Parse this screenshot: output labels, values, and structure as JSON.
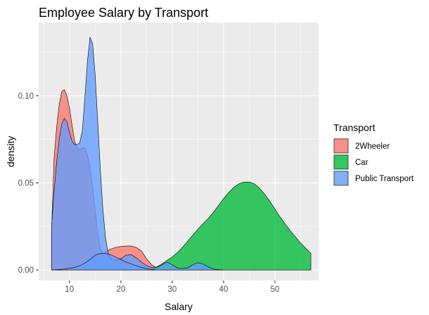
{
  "chart_data": {
    "type": "area",
    "title": "Employee Salary by Transport",
    "xlabel": "Salary",
    "ylabel": "density",
    "xlim": [
      4,
      58.5
    ],
    "ylim": [
      -0.006,
      0.142
    ],
    "xticks": [
      10,
      20,
      30,
      40,
      50
    ],
    "xtick_labels": [
      "10",
      "20",
      "30",
      "40",
      "50"
    ],
    "yticks": [
      0,
      0.05,
      0.1
    ],
    "ytick_labels": [
      "0.00",
      "0.05",
      "0.10"
    ],
    "grid": true,
    "legend": {
      "title": "Transport",
      "placement": "right"
    },
    "series": [
      {
        "name": "2Wheeler",
        "color": "#F8766D",
        "points": [
          [
            6.5,
            0.022
          ],
          [
            7,
            0.064
          ],
          [
            7.5,
            0.082
          ],
          [
            8,
            0.095
          ],
          [
            8.5,
            0.1025
          ],
          [
            9,
            0.1035
          ],
          [
            9.5,
            0.1
          ],
          [
            10,
            0.093
          ],
          [
            10.5,
            0.083
          ],
          [
            11,
            0.074
          ],
          [
            11.5,
            0.07
          ],
          [
            12,
            0.069
          ],
          [
            12.5,
            0.07
          ],
          [
            13,
            0.07
          ],
          [
            13.5,
            0.066
          ],
          [
            14,
            0.058
          ],
          [
            14.5,
            0.047
          ],
          [
            15,
            0.034
          ],
          [
            15.5,
            0.021
          ],
          [
            16,
            0.012
          ],
          [
            16.5,
            0.0095
          ],
          [
            17,
            0.0105
          ],
          [
            18,
            0.012
          ],
          [
            19,
            0.013
          ],
          [
            20,
            0.0135
          ],
          [
            21,
            0.0138
          ],
          [
            22,
            0.0138
          ],
          [
            23,
            0.013
          ],
          [
            24,
            0.011
          ],
          [
            25,
            0.0065
          ],
          [
            26,
            0.003
          ],
          [
            27,
            0.0012
          ],
          [
            28,
            0.0005
          ],
          [
            29,
            0.0002
          ],
          [
            30,
            0.0
          ]
        ]
      },
      {
        "name": "Car",
        "color": "#00BA38",
        "points": [
          [
            25,
            0.0
          ],
          [
            26,
            0.0006
          ],
          [
            27,
            0.0018
          ],
          [
            28,
            0.0035
          ],
          [
            29,
            0.0055
          ],
          [
            30,
            0.0075
          ],
          [
            31,
            0.01
          ],
          [
            32,
            0.013
          ],
          [
            33,
            0.0165
          ],
          [
            34,
            0.02
          ],
          [
            35,
            0.0235
          ],
          [
            36,
            0.0265
          ],
          [
            37,
            0.0295
          ],
          [
            38,
            0.033
          ],
          [
            39,
            0.037
          ],
          [
            40,
            0.041
          ],
          [
            41,
            0.0445
          ],
          [
            42,
            0.0475
          ],
          [
            43,
            0.0495
          ],
          [
            44,
            0.0505
          ],
          [
            45,
            0.0505
          ],
          [
            46,
            0.0495
          ],
          [
            47,
            0.047
          ],
          [
            48,
            0.0435
          ],
          [
            49,
            0.0395
          ],
          [
            50,
            0.035
          ],
          [
            51,
            0.0305
          ],
          [
            52,
            0.0265
          ],
          [
            53,
            0.0225
          ],
          [
            54,
            0.019
          ],
          [
            55,
            0.0155
          ],
          [
            56,
            0.0125
          ],
          [
            57,
            0.0095
          ]
        ]
      },
      {
        "name": "Public Transport",
        "color": "#619CFF",
        "points": [
          [
            6.5,
            0.025
          ],
          [
            7,
            0.045
          ],
          [
            7.5,
            0.062
          ],
          [
            8,
            0.075
          ],
          [
            8.5,
            0.084
          ],
          [
            9,
            0.087
          ],
          [
            9.5,
            0.085
          ],
          [
            10,
            0.079
          ],
          [
            10.5,
            0.074
          ],
          [
            11,
            0.072
          ],
          [
            11.5,
            0.072
          ],
          [
            12,
            0.073
          ],
          [
            12.5,
            0.08
          ],
          [
            13,
            0.099
          ],
          [
            13.5,
            0.12
          ],
          [
            14,
            0.1335
          ],
          [
            14.5,
            0.13
          ],
          [
            15,
            0.112
          ],
          [
            15.5,
            0.085
          ],
          [
            16,
            0.058
          ],
          [
            16.5,
            0.035
          ],
          [
            17,
            0.019
          ],
          [
            17.5,
            0.01
          ],
          [
            18,
            0.0065
          ],
          [
            19,
            0.0055
          ],
          [
            20,
            0.0065
          ],
          [
            21,
            0.0085
          ],
          [
            22,
            0.0088
          ],
          [
            23,
            0.007
          ],
          [
            24,
            0.0045
          ],
          [
            25,
            0.0025
          ],
          [
            26,
            0.0015
          ],
          [
            27,
            0.0015
          ],
          [
            28,
            0.003
          ],
          [
            29,
            0.0045
          ],
          [
            30,
            0.003
          ],
          [
            31,
            0.0012
          ],
          [
            32,
            0.0008
          ],
          [
            33,
            0.0012
          ],
          [
            34,
            0.003
          ],
          [
            35,
            0.0042
          ],
          [
            36,
            0.0035
          ],
          [
            37,
            0.0018
          ],
          [
            38,
            0.0006
          ],
          [
            39,
            0.0002
          ],
          [
            40,
            0.0
          ]
        ]
      },
      {
        "name": "Public Transport",
        "color": "#619CFF",
        "points": [
          [
            6.5,
            0.0
          ],
          [
            9,
            0.0005
          ],
          [
            11,
            0.0015
          ],
          [
            12,
            0.0025
          ],
          [
            13,
            0.004
          ],
          [
            14,
            0.006
          ],
          [
            15,
            0.0085
          ],
          [
            16,
            0.0095
          ],
          [
            17,
            0.0095
          ],
          [
            18,
            0.0088
          ],
          [
            19,
            0.0075
          ],
          [
            20,
            0.006
          ],
          [
            21,
            0.0045
          ],
          [
            22,
            0.0035
          ],
          [
            23,
            0.0025
          ],
          [
            24,
            0.0015
          ],
          [
            25,
            0.0008
          ],
          [
            26,
            0.0004
          ],
          [
            27,
            0.0
          ]
        ]
      }
    ]
  }
}
